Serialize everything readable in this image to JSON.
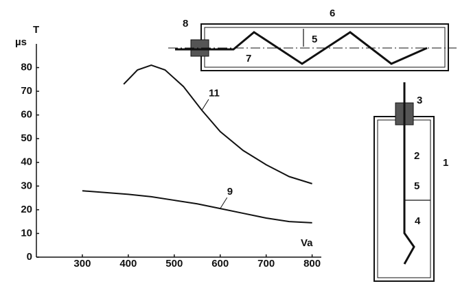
{
  "chart_data": {
    "type": "line",
    "ylabel": "T",
    "yunit": "µs",
    "xlabel": "Va",
    "xlim": [
      200,
      820
    ],
    "ylim": [
      0,
      90
    ],
    "xticks": [
      300,
      400,
      500,
      600,
      700,
      800
    ],
    "yticks": [
      0,
      10,
      20,
      30,
      40,
      50,
      60,
      70,
      80
    ],
    "series": [
      {
        "name": "11",
        "color": "#111111",
        "x": [
          390,
          420,
          450,
          480,
          520,
          560,
          600,
          650,
          700,
          750,
          800
        ],
        "values": [
          73,
          79,
          81,
          79,
          72,
          62,
          53,
          45,
          39,
          34,
          31
        ]
      },
      {
        "name": "9",
        "color": "#111111",
        "x": [
          300,
          400,
          450,
          500,
          550,
          600,
          650,
          700,
          750,
          800
        ],
        "values": [
          28,
          26.5,
          25.5,
          24,
          22.5,
          20.5,
          18.5,
          16.5,
          15,
          14.5
        ]
      }
    ]
  },
  "top_diagram": {
    "labels": [
      "8",
      "6",
      "5",
      "7"
    ]
  },
  "side_diagram": {
    "labels": [
      "3",
      "2",
      "1",
      "5",
      "4"
    ]
  }
}
